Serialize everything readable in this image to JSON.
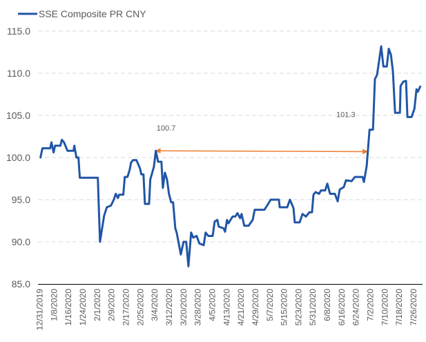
{
  "chart_data": {
    "type": "line",
    "title": "",
    "xlabel": "",
    "ylabel": "",
    "legend": {
      "position": "top-left",
      "entries": [
        "SSE Composite PR CNY"
      ]
    },
    "x_unit": "days since 12/31/2019",
    "xlim": [
      -1,
      213
    ],
    "ylim": [
      85,
      115
    ],
    "y_ticks": [
      85,
      90,
      95,
      100,
      105,
      110,
      115
    ],
    "y_tick_labels": [
      "85.0",
      "90.0",
      "95.0",
      "100.0",
      "105.0",
      "110.0",
      "115.0"
    ],
    "x_tick_labels": [
      "12/31/2019",
      "1/8/2020",
      "1/16/2020",
      "1/24/2020",
      "2/1/2020",
      "2/9/2020",
      "2/17/2020",
      "2/25/2020",
      "3/4/2020",
      "3/12/2020",
      "3/20/2020",
      "3/28/2020",
      "4/5/2020",
      "4/13/2020",
      "4/21/2020",
      "4/29/2020",
      "5/7/2020",
      "5/15/2020",
      "5/23/2020",
      "5/31/2020",
      "6/8/2020",
      "6/16/2020",
      "6/24/2020",
      "7/2/2020",
      "7/10/2020",
      "7/18/2020",
      "7/26/2020"
    ],
    "x_tick_step_days": 8,
    "grid": "horizontal dashed",
    "colors": {
      "series": "#2156a5",
      "annotation": "#ed7d31",
      "grid": "#d9d9d9",
      "axis": "#000000"
    },
    "series": [
      {
        "name": "SSE Composite PR CNY",
        "x": [
          0,
          0.4,
          1.5,
          5.8,
          6.5,
          7.7,
          8.5,
          11.5,
          12.3,
          13.5,
          15.4,
          18.8,
          19.2,
          20.4,
          21.5,
          22.3,
          32.3,
          33.5,
          35.8,
          37.3,
          39.6,
          41.2,
          42.3,
          43.5,
          44.2,
          46.5,
          47.3,
          48.8,
          50.0,
          50.8,
          51.9,
          53.8,
          55.8,
          56.5,
          57.7,
          58.5,
          60.8,
          61.5,
          63.5,
          64.6,
          65.8,
          67.7,
          68.5,
          69.6,
          70.8,
          71.9,
          73.1,
          74.2,
          75.4,
          76.2,
          78.5,
          80.0,
          81.5,
          82.7,
          84.2,
          85.4,
          87.3,
          88.8,
          91.2,
          92.3,
          93.8,
          96.2,
          97.3,
          98.8,
          99.6,
          102.3,
          103.1,
          104.2,
          105.0,
          107.3,
          108.8,
          110.0,
          111.5,
          112.3,
          113.8,
          116.2,
          118.5,
          119.6,
          125.0,
          126.5,
          128.5,
          133.1,
          133.5,
          137.7,
          139.2,
          141.2,
          141.9,
          144.6,
          146.2,
          148.1,
          150.0,
          151.5,
          152.3,
          153.5,
          155.4,
          156.5,
          158.8,
          160.0,
          161.5,
          164.2,
          165.8,
          166.9,
          169.2,
          170.4,
          173.5,
          175.4,
          179.6,
          180.4,
          181.9,
          183.5,
          185.4,
          186.5,
          187.7,
          190.0,
          191.2,
          193.1,
          194.2,
          195.4,
          196.5,
          197.7,
          200.4,
          200.8,
          202.3,
          203.8,
          204.6,
          206.9,
          208.5,
          209.6,
          210.4,
          211.9
        ],
        "values": [
          100.0,
          100.0,
          101.1,
          101.1,
          101.8,
          100.6,
          101.4,
          101.4,
          102.1,
          101.8,
          100.8,
          100.8,
          101.4,
          100.0,
          100.0,
          97.6,
          97.6,
          90.0,
          93.1,
          94.1,
          94.3,
          95.0,
          95.7,
          95.2,
          95.6,
          95.6,
          97.7,
          97.7,
          98.5,
          99.4,
          99.7,
          99.7,
          98.7,
          98.0,
          98.0,
          94.5,
          94.5,
          97.4,
          98.9,
          100.8,
          99.5,
          99.5,
          96.4,
          98.2,
          97.4,
          95.7,
          94.7,
          94.7,
          91.6,
          91.1,
          88.5,
          90.0,
          90.0,
          87.1,
          91.1,
          90.5,
          90.7,
          89.8,
          89.6,
          91.1,
          90.7,
          90.7,
          92.4,
          92.6,
          91.8,
          91.6,
          91.2,
          92.6,
          92.2,
          93.0,
          93.0,
          93.4,
          92.8,
          93.3,
          91.9,
          91.9,
          92.6,
          93.8,
          93.8,
          94.3,
          95.0,
          95.0,
          94.1,
          94.1,
          95.0,
          94.0,
          92.3,
          92.3,
          93.3,
          93.0,
          93.5,
          93.5,
          95.6,
          95.9,
          95.7,
          96.1,
          96.1,
          96.9,
          95.7,
          95.7,
          94.8,
          96.2,
          96.5,
          97.3,
          97.2,
          97.7,
          97.7,
          97.1,
          99.0,
          103.3,
          103.3,
          109.3,
          109.8,
          113.2,
          110.8,
          110.8,
          112.9,
          112.2,
          110.2,
          105.3,
          105.3,
          108.5,
          109.0,
          109.1,
          104.8,
          104.8,
          105.8,
          108.1,
          107.8,
          108.5
        ]
      }
    ],
    "annotations": [
      {
        "type": "double-arrow",
        "from": [
          64.6,
          100.8
        ],
        "to": [
          182.3,
          100.7
        ]
      },
      {
        "type": "label",
        "text": "100.7",
        "at": [
          65,
          103.2
        ]
      },
      {
        "type": "label",
        "text": "101.3",
        "at": [
          165,
          104.8
        ]
      }
    ]
  }
}
